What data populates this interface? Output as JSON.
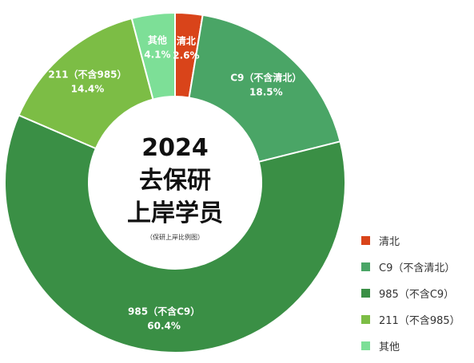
{
  "chart_data": {
    "type": "pie",
    "center_title": [
      "2024",
      "去保研",
      "上岸学员"
    ],
    "center_subtitle": "（保研上岸比例图）",
    "legend_position": "bottom-right",
    "slices": [
      {
        "name": "清北",
        "value": 2.6,
        "label": "2.6%",
        "color": "#d9441a"
      },
      {
        "name": "C9（不含清北）",
        "value": 18.5,
        "label": "18.5%",
        "color": "#4aa566"
      },
      {
        "name": "985（不含C9）",
        "value": 60.4,
        "label": "60.4%",
        "color": "#3a8f45"
      },
      {
        "name": "211（不含985）",
        "value": 14.4,
        "label": "14.4%",
        "color": "#7cbd45"
      },
      {
        "name": "其他",
        "value": 4.1,
        "label": "4.1%",
        "color": "#7ddf97"
      }
    ]
  }
}
